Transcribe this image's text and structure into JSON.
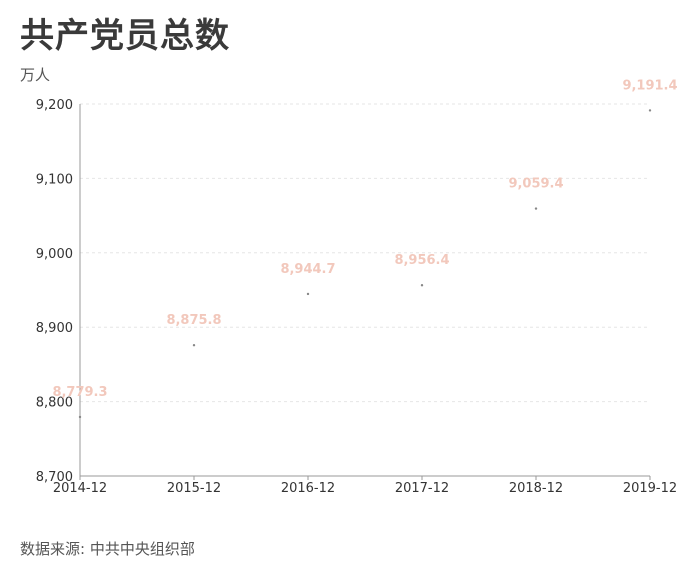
{
  "header": {
    "title": "共产党员总数",
    "unit": "万人"
  },
  "footer": {
    "source": "数据来源: 中共中央组织部"
  },
  "chart_data": {
    "type": "scatter",
    "title": "共产党员总数",
    "ylabel": "万人",
    "xlabel": "",
    "categories": [
      "2014-12",
      "2015-12",
      "2016-12",
      "2017-12",
      "2018-12",
      "2019-12"
    ],
    "values": [
      8779.3,
      8875.8,
      8944.7,
      8956.4,
      9059.4,
      9191.4
    ],
    "data_labels": [
      "8,779.3",
      "8,875.8",
      "8,944.7",
      "8,956.4",
      "9,059.4",
      "9,191.4"
    ],
    "ylim": [
      8700,
      9200
    ],
    "yticks": [
      8700,
      8800,
      8900,
      9000,
      9100,
      9200
    ],
    "ytick_labels": [
      "8,700",
      "8,800",
      "8,900",
      "9,000",
      "9,100",
      "9,200"
    ],
    "grid": true,
    "colors": {
      "label": "#f2c8bc",
      "point": "#888888",
      "grid": "#e6e6e6"
    }
  }
}
